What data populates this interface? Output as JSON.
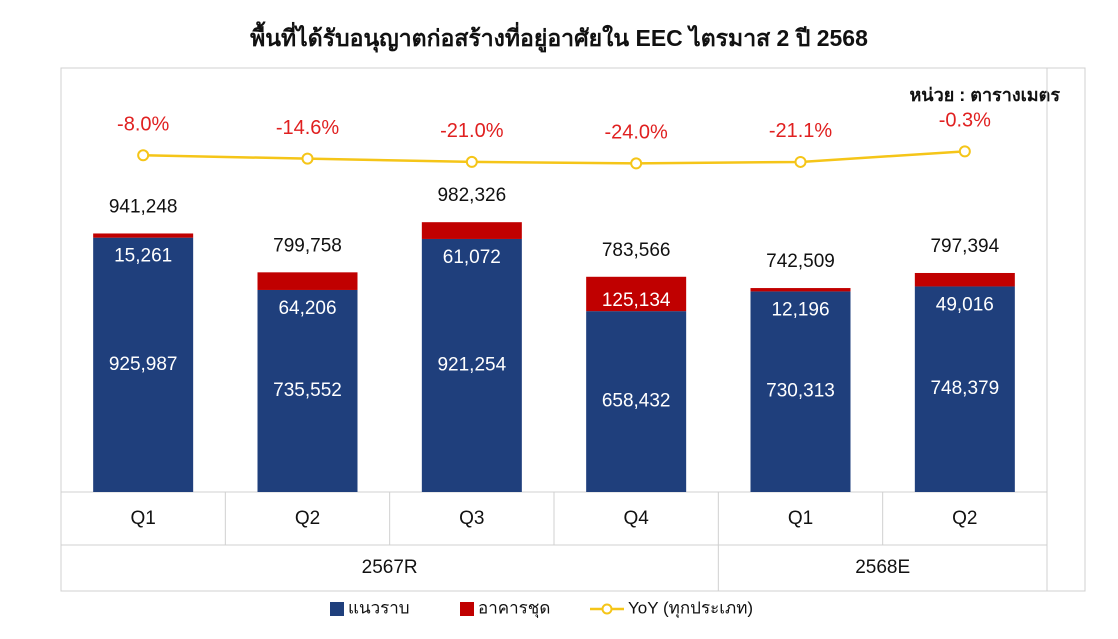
{
  "chart_data": {
    "type": "bar",
    "title": "พื้นที่ได้รับอนุญาตก่อสร้างที่อยู่อาศัยใน EEC ไตรมาส 2 ปี 2568",
    "unit_note": "หน่วย : ตารางเมตร",
    "stacked": true,
    "groups": [
      {
        "label": "2567R",
        "categories": [
          "Q1",
          "Q2",
          "Q3",
          "Q4"
        ]
      },
      {
        "label": "2568E",
        "categories": [
          "Q1",
          "Q2"
        ]
      }
    ],
    "ylim": [
      0,
      1500000
    ],
    "y2lim": [
      -670,
      140
    ],
    "series": [
      {
        "name": "แนวราบ",
        "color": "#1f3f7c",
        "values": [
          925987,
          735552,
          921254,
          658432,
          730313,
          748379
        ],
        "value_labels": [
          "925,987",
          "735,552",
          "921,254",
          "658,432",
          "730,313",
          "748,379"
        ]
      },
      {
        "name": "อาคารชุด",
        "color": "#c00000",
        "values": [
          15261,
          64206,
          61072,
          125134,
          12196,
          49016
        ],
        "value_labels": [
          "15,261",
          "64,206",
          "61,072",
          "125,134",
          "12,196",
          "49,016"
        ]
      },
      {
        "name": "YoY (ทุกประเภท)",
        "color": "#f5c518",
        "type": "line",
        "axis": "y2",
        "values": [
          -8.0,
          -14.6,
          -21.0,
          -24.0,
          -21.1,
          -0.3
        ],
        "value_labels": [
          "-8.0%",
          "-14.6%",
          "-21.0%",
          "-24.0%",
          "-21.1%",
          "-0.3%"
        ],
        "label_color": "#e02020"
      }
    ],
    "totals": {
      "values": [
        941248,
        799758,
        982326,
        783566,
        742509,
        797394
      ],
      "value_labels": [
        "941,248",
        "799,758",
        "982,326",
        "783,566",
        "742,509",
        "797,394"
      ]
    }
  }
}
